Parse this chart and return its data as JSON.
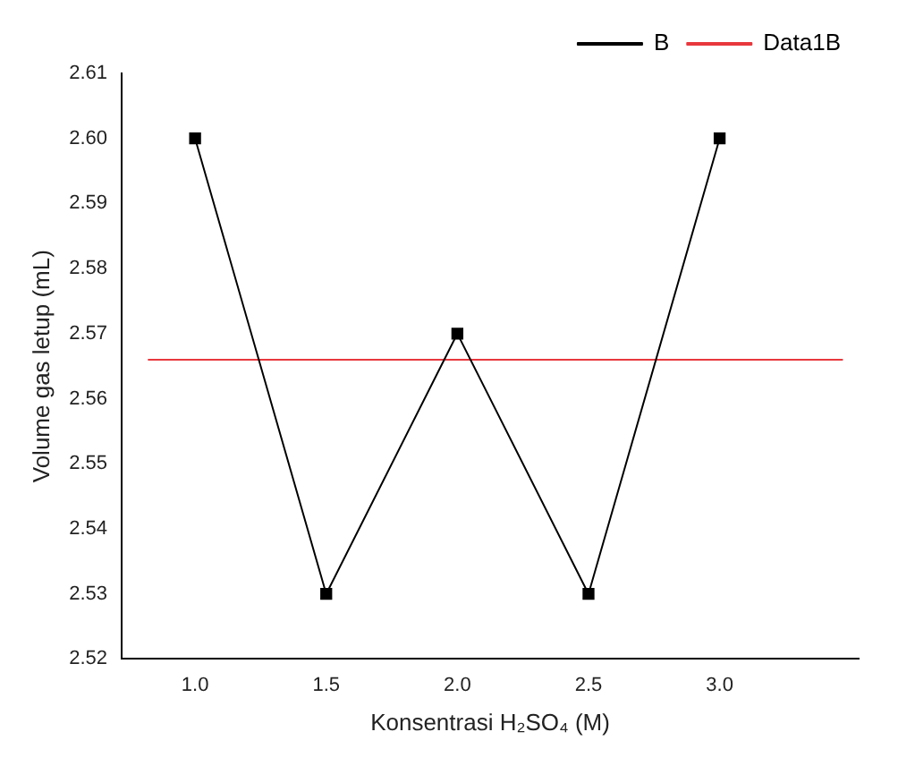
{
  "chart_data": {
    "type": "line",
    "xlabel": "Konsentrasi H₂SO₄ (M)",
    "ylabel": "Volume gas letup (mL)",
    "x": [
      1.0,
      1.5,
      2.0,
      2.5,
      3.0
    ],
    "series": [
      {
        "name": "B",
        "color": "#000000",
        "values": [
          2.6,
          2.53,
          2.57,
          2.53,
          2.6
        ],
        "marker": "square"
      },
      {
        "name": "Data1B",
        "color": "#e8383d",
        "x": [
          0.82,
          3.47
        ],
        "values": [
          2.566,
          2.566
        ],
        "marker": "none"
      }
    ],
    "xlim": [
      0.72,
      3.53
    ],
    "xticks": [
      {
        "value": 1.0,
        "label": "1.0"
      },
      {
        "value": 1.5,
        "label": "1.5"
      },
      {
        "value": 2.0,
        "label": "2.0"
      },
      {
        "value": 2.5,
        "label": "2.5"
      },
      {
        "value": 3.0,
        "label": "3.0"
      }
    ],
    "ylim": [
      2.52,
      2.61
    ],
    "yticks": [
      {
        "value": 2.52,
        "label": "2.52"
      },
      {
        "value": 2.53,
        "label": "2.53"
      },
      {
        "value": 2.54,
        "label": "2.54"
      },
      {
        "value": 2.55,
        "label": "2.55"
      },
      {
        "value": 2.56,
        "label": "2.56"
      },
      {
        "value": 2.57,
        "label": "2.57"
      },
      {
        "value": 2.58,
        "label": "2.58"
      },
      {
        "value": 2.59,
        "label": "2.59"
      },
      {
        "value": 2.6,
        "label": "2.60"
      },
      {
        "value": 2.61,
        "label": "2.61"
      }
    ],
    "grid": false,
    "legend": "top right",
    "line_style": "solid"
  }
}
